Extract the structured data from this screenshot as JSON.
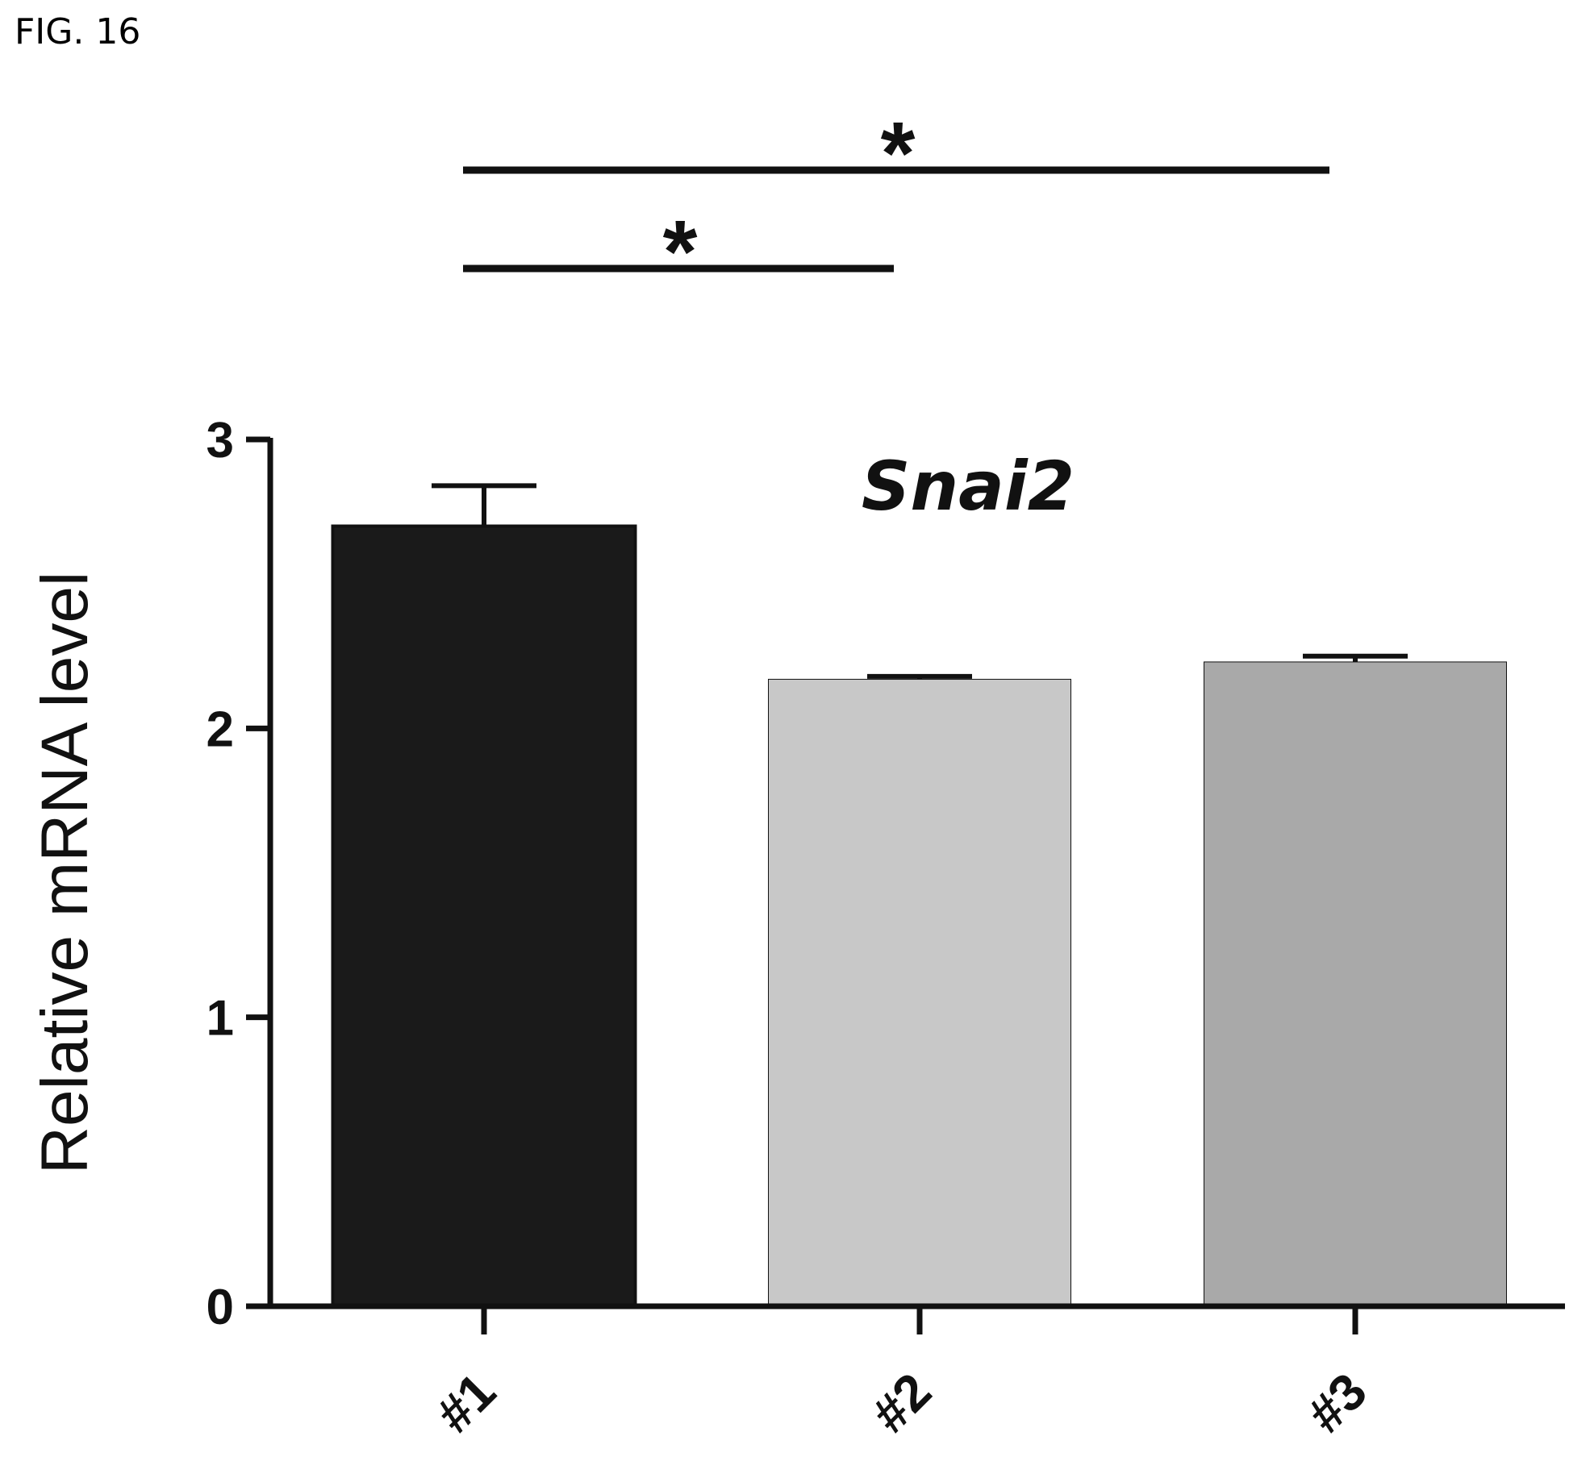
{
  "figure_label": "FIG. 16",
  "chart_data": {
    "type": "bar",
    "title": "Snai2",
    "xlabel": "",
    "ylabel": "Relative mRNA level",
    "categories": [
      "#1",
      "#2",
      "#3"
    ],
    "values": [
      2.7,
      2.17,
      2.23
    ],
    "errors": [
      0.14,
      0.01,
      0.02
    ],
    "colors": [
      "#1a1a1a",
      "#c8c8c8",
      "#a9a9a9"
    ],
    "ylim": [
      0,
      3
    ],
    "yticks": [
      "0",
      "1",
      "2",
      "3"
    ],
    "grid": false,
    "significance": [
      {
        "from": "#1",
        "to": "#2",
        "label": "*"
      },
      {
        "from": "#1",
        "to": "#3",
        "label": "*"
      }
    ]
  }
}
